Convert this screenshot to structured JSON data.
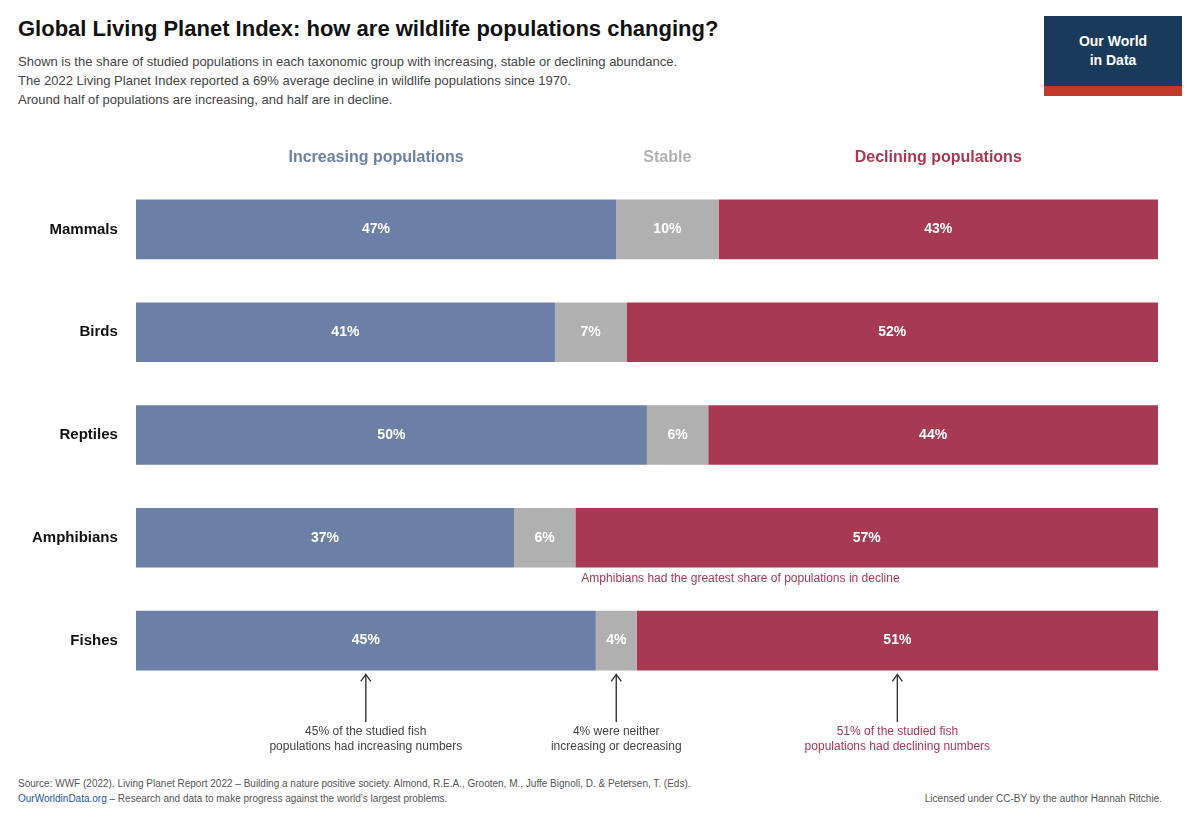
{
  "chart_data": {
    "type": "bar",
    "orientation": "horizontal",
    "stacked": true,
    "title": "Global Living Planet Index: how are wildlife populations changing?",
    "subtitle": [
      "Shown is the share of studied populations in each taxonomic group with increasing, stable or declining abundance.",
      "The 2022 Living Planet Index reported a 69% average decline in wildlife populations since 1970.",
      "Around half of populations are increasing, and half are in decline."
    ],
    "categories": [
      "Mammals",
      "Birds",
      "Reptiles",
      "Amphibians",
      "Fishes"
    ],
    "series": [
      {
        "name": "Increasing populations",
        "color": "#6c7fa6",
        "values": [
          47,
          41,
          50,
          37,
          45
        ],
        "value_labels": [
          "47%",
          "41%",
          "50%",
          "37%",
          "45%"
        ]
      },
      {
        "name": "Stable",
        "color": "#b0b0b0",
        "values": [
          10,
          7,
          6,
          6,
          4
        ],
        "value_labels": [
          "10%",
          "7%",
          "6%",
          "6%",
          "4%"
        ]
      },
      {
        "name": "Declining populations",
        "color": "#a63a52",
        "values": [
          43,
          52,
          44,
          57,
          51
        ],
        "value_labels": [
          "43%",
          "52%",
          "44%",
          "57%",
          "51%"
        ]
      }
    ],
    "xlim": [
      0,
      100
    ],
    "grid": false,
    "tick_labels": "y",
    "data_labels": true,
    "annotations": [
      {
        "text": "Amphibians had the greatest share of populations in decline",
        "category": "Amphibians",
        "series": "Declining populations",
        "color": "#a63a52"
      },
      {
        "text": "45% of the studied fish\npopulations had increasing numbers",
        "category": "Fishes",
        "series": "Increasing populations"
      },
      {
        "text": "4% were neither\nincreasing or decreasing",
        "category": "Fishes",
        "series": "Stable"
      },
      {
        "text": "51% of the studied fish\npopulations had declining numbers",
        "category": "Fishes",
        "series": "Declining populations",
        "color": "#a63a52"
      }
    ],
    "source": "Source: WWF (2022). Living Planet Report 2022 – Building a nature positive society. Almond, R.E.A., Grooten, M., Juffe Bignoli, D. & Petersen, T. (Eds).",
    "footer": [
      {
        "text": "OurWorldinData.org",
        "color": "#2255aa"
      },
      {
        "text": " – Research and data to make progress against the world’s largest problems."
      },
      {
        "text": "Licensed under CC-BY by the author Hannah Ritchie."
      }
    ],
    "logo": {
      "text": [
        "Our World",
        "in Data"
      ],
      "colors": [
        "#1a3a5c",
        "#c0392b"
      ]
    }
  }
}
